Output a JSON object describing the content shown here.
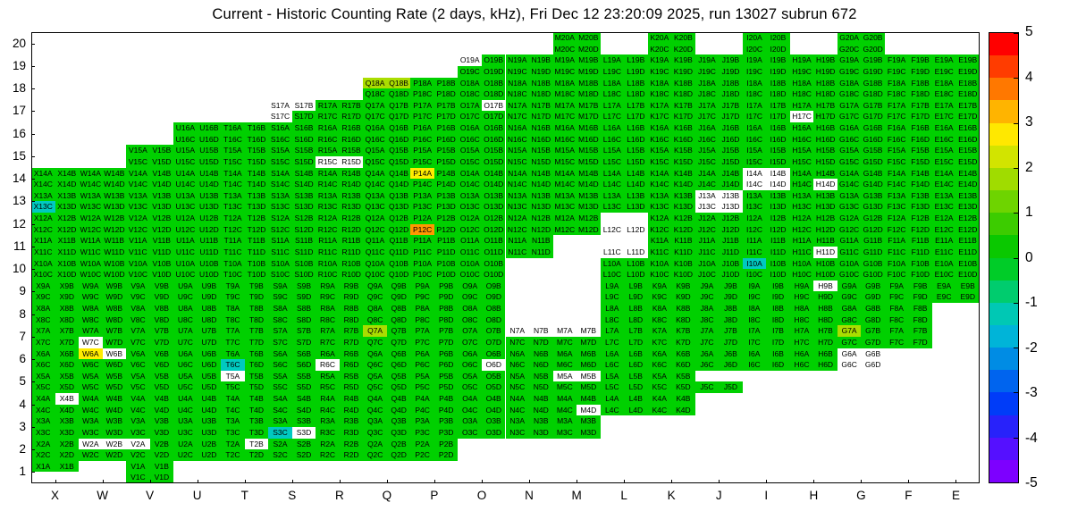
{
  "chart_data": {
    "type": "heatmap",
    "title": "Current - Historic Counting Rate (2 days, kHz), Fri Dec 12 23:20:09 2025, run 13027 subrun 672",
    "xlabel": "",
    "ylabel": "",
    "zlim": [
      -5,
      5
    ],
    "x_labels": [
      "X",
      "W",
      "V",
      "U",
      "T",
      "S",
      "R",
      "Q",
      "P",
      "O",
      "N",
      "M",
      "L",
      "K",
      "J",
      "I",
      "H",
      "G",
      "F",
      "E"
    ],
    "y_labels": [
      "20",
      "19",
      "18",
      "17",
      "16",
      "15",
      "14",
      "13",
      "12",
      "11",
      "10",
      "9",
      "8",
      "7",
      "6",
      "5",
      "4",
      "3",
      "2",
      "1"
    ],
    "quads": [
      "A",
      "B",
      "C",
      "D"
    ],
    "label_pattern": "{column}{row}{quadrant}",
    "palette": {
      "g": {
        "name": "green",
        "color": "#00d000",
        "value": 0.5
      },
      "h": {
        "name": "chartreuse",
        "color": "#aadd00",
        "value": 2.2
      },
      "y": {
        "name": "yellow",
        "color": "#ffec00",
        "value": 2.8
      },
      "o": {
        "name": "orange",
        "color": "#ff9800",
        "value": 3.6
      },
      "c": {
        "name": "cyan",
        "color": "#00c9c0",
        "value": -1.2
      },
      "w": {
        "name": "white",
        "color": "#ffffff",
        "value": null
      }
    },
    "colorbar": {
      "min": -5,
      "max": 5,
      "ticks": [
        "5",
        "4",
        "3",
        "2",
        "1",
        "0",
        "-1",
        "-2",
        "-3",
        "-4",
        "-5"
      ],
      "colors": [
        "#ff0000",
        "#ff3c00",
        "#ff7800",
        "#ffb400",
        "#ffe800",
        "#d2e400",
        "#a0dc00",
        "#6ed400",
        "#3ccc00",
        "#0ac800",
        "#00cc28",
        "#00cc6e",
        "#00c8b4",
        "#00b4d8",
        "#008ce4",
        "#0064ee",
        "#003cf8",
        "#2822fa",
        "#5510ff",
        "#7d00ff"
      ]
    },
    "cells": {
      "20": {
        "only": {
          "M": "gggg",
          "K": "gggg",
          "I": "gggg",
          "G": "gggg"
        }
      },
      "19": {
        "span": [
          "O",
          "E"
        ],
        "default": "gggg",
        "overrides": {
          "O": "wggg"
        }
      },
      "18": {
        "span": [
          "Q",
          "E"
        ],
        "default": "gggg",
        "overrides": {
          "Q": "hhgg"
        }
      },
      "17": {
        "span": [
          "S",
          "E"
        ],
        "default": "gggg",
        "overrides": {
          "S": "wwwg",
          "O": "gwgg",
          "H": "ggwg"
        }
      },
      "16": {
        "span": [
          "U",
          "E"
        ],
        "default": "gggg"
      },
      "15": {
        "span": [
          "V",
          "E"
        ],
        "default": "gggg",
        "overrides": {
          "R": "ggww"
        }
      },
      "14": {
        "span": [
          "X",
          "E"
        ],
        "default": "gggg",
        "overrides": {
          "P": "yggg",
          "I": "wwww",
          "H": "gggw"
        }
      },
      "13": {
        "span": [
          "X",
          "E"
        ],
        "default": "gggg",
        "overrides": {
          "X": "ggcg",
          "J": "wwww"
        }
      },
      "12": {
        "span": [
          "X",
          "E"
        ],
        "default": "gggg",
        "overrides": {
          "P": "ggog",
          "L": "..ww"
        }
      },
      "11": {
        "span": [
          "X",
          "E"
        ],
        "default": "gggg",
        "overrides": {
          "M": "....",
          "L": "..ww",
          "H": "gggw"
        }
      },
      "10": {
        "span": [
          "X",
          "E"
        ],
        "default": "gggg",
        "overrides": {
          "N": "....",
          "M": "....",
          "I": "cggg"
        }
      },
      "9": {
        "span": [
          "X",
          "E"
        ],
        "default": "gggg",
        "overrides": {
          "N": "....",
          "M": "....",
          "H": "gwgg"
        }
      },
      "8": {
        "span": [
          "X",
          "F"
        ],
        "default": "gggg",
        "overrides": {
          "N": "....",
          "M": "...."
        }
      },
      "7": {
        "span": [
          "X",
          "F"
        ],
        "default": "gggg",
        "overrides": {
          "W": "ggwg",
          "Q": "hggg",
          "N": "wwgg",
          "M": "wwgg",
          "G": "hggg"
        }
      },
      "6": {
        "span": [
          "X",
          "G"
        ],
        "default": "gggg",
        "overrides": {
          "W": "ywgg",
          "T": "ggcg",
          "R": "ggwg",
          "O": "gggw",
          "G": "wwww"
        }
      },
      "5": {
        "span": [
          "X",
          "J"
        ],
        "default": "gggg",
        "overrides": {
          "T": "wggg",
          "M": "wwgg",
          "J": "..gg"
        }
      },
      "4": {
        "span": [
          "X",
          "K"
        ],
        "default": "gggg",
        "overrides": {
          "X": "gwgg",
          "M": "gggw"
        }
      },
      "3": {
        "span": [
          "X",
          "M"
        ],
        "default": "gggg",
        "overrides": {
          "S": "ggcw"
        }
      },
      "2": {
        "span": [
          "X",
          "P"
        ],
        "default": "gggg",
        "overrides": {
          "W": "wwgg",
          "V": "wggg",
          "T": "gwgg"
        }
      },
      "1": {
        "only": {
          "X": "gg..",
          "V": "gggg"
        }
      }
    }
  }
}
